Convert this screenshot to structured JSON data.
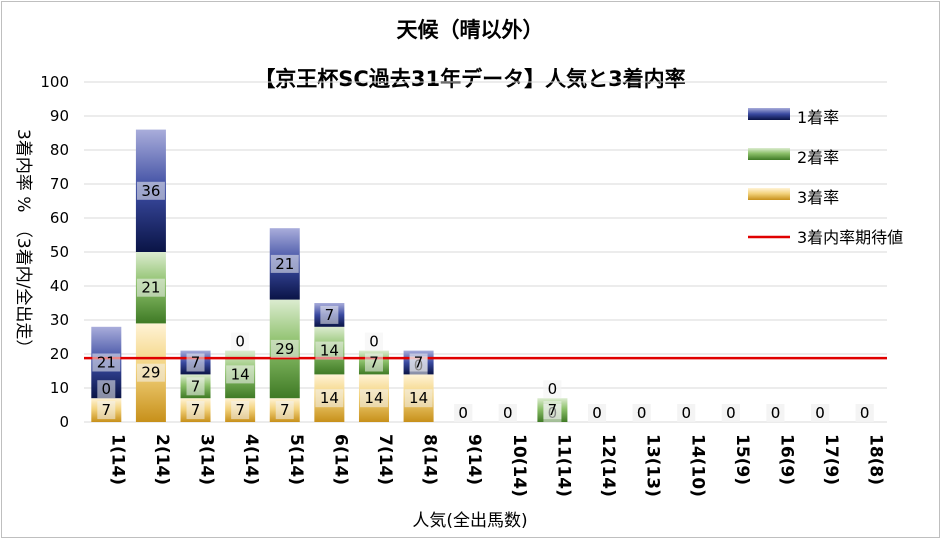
{
  "chart_data": {
    "type": "bar",
    "stacked": true,
    "title": "天候（晴以外）",
    "subtitle": "【京王杯SC過去31年データ】人気と3着内率",
    "xlabel": "人気(全出馬数)",
    "ylabel": "3着内率 %　（3着内/全出走）",
    "ylim": [
      0,
      100
    ],
    "yticks": [
      0,
      10,
      20,
      30,
      40,
      50,
      60,
      70,
      80,
      90,
      100
    ],
    "grid": true,
    "legend_position": "right",
    "categories": [
      "1(14)",
      "2(14)",
      "3(14)",
      "4(14)",
      "5(14)",
      "6(14)",
      "7(14)",
      "8(14)",
      "9(14)",
      "10(14)",
      "11(14)",
      "12(14)",
      "13(13)",
      "14(10)",
      "15(9)",
      "16(9)",
      "17(9)",
      "18(8)"
    ],
    "series": [
      {
        "name": "3着率",
        "color": "#d4a22a",
        "values": [
          7,
          29,
          7,
          7,
          7,
          14,
          14,
          14,
          0,
          0,
          0,
          0,
          0,
          0,
          0,
          0,
          0,
          0
        ]
      },
      {
        "name": "2着率",
        "color": "#5b8f3a",
        "values": [
          0,
          21,
          7,
          14,
          29,
          14,
          7,
          0,
          0,
          0,
          7,
          0,
          0,
          0,
          0,
          0,
          0,
          0
        ]
      },
      {
        "name": "1着率",
        "color": "#1f2a78",
        "values": [
          21,
          36,
          7,
          0,
          21,
          7,
          0,
          7,
          0,
          0,
          0,
          0,
          0,
          0,
          0,
          0,
          0,
          0
        ]
      }
    ],
    "reference_line": {
      "name": "3着内率期待値",
      "value": 18.8,
      "color": "#e00000"
    }
  }
}
